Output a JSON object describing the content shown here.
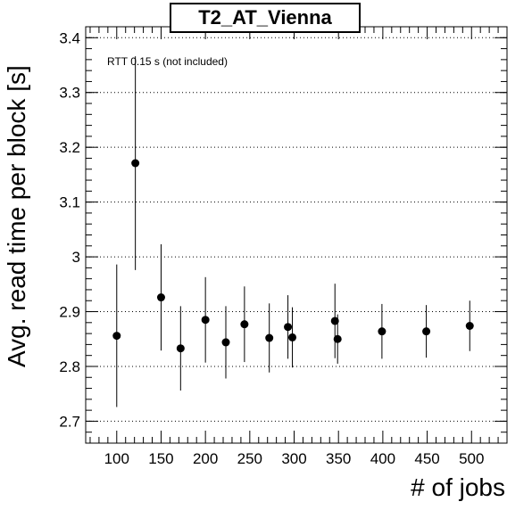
{
  "chart_data": {
    "type": "scatter",
    "title": "T2_AT_Vienna",
    "xlabel": "# of jobs",
    "ylabel": "Avg. read time per block [s]",
    "annotation": "RTT 0.15 s (not included)",
    "xlim": [
      65,
      540
    ],
    "ylim": [
      2.66,
      3.42
    ],
    "x_ticks": [
      100,
      150,
      200,
      250,
      300,
      350,
      400,
      450,
      500
    ],
    "y_ticks": [
      2.7,
      2.8,
      2.9,
      3.0,
      3.1,
      3.2,
      3.3,
      3.4
    ],
    "y_tick_labels": [
      "2.7",
      "2.8",
      "2.9",
      "3",
      "3.1",
      "3.2",
      "3.3",
      "3.4"
    ],
    "grid": "horizontal dotted",
    "series": [
      {
        "points": [
          {
            "x": 100,
            "y": 2.856,
            "err": 0.13
          },
          {
            "x": 121,
            "y": 3.171,
            "err": 0.195
          },
          {
            "x": 150,
            "y": 2.926,
            "err": 0.097
          },
          {
            "x": 172,
            "y": 2.833,
            "err": 0.077
          },
          {
            "x": 200,
            "y": 2.885,
            "err": 0.078
          },
          {
            "x": 223,
            "y": 2.844,
            "err": 0.066
          },
          {
            "x": 244,
            "y": 2.877,
            "err": 0.069
          },
          {
            "x": 272,
            "y": 2.852,
            "err": 0.063
          },
          {
            "x": 293,
            "y": 2.872,
            "err": 0.058
          },
          {
            "x": 298,
            "y": 2.853,
            "err": 0.055
          },
          {
            "x": 346,
            "y": 2.883,
            "err": 0.068
          },
          {
            "x": 349,
            "y": 2.85,
            "err": 0.045
          },
          {
            "x": 399,
            "y": 2.864,
            "err": 0.05
          },
          {
            "x": 449,
            "y": 2.864,
            "err": 0.048
          },
          {
            "x": 498,
            "y": 2.874,
            "err": 0.046
          }
        ]
      }
    ]
  }
}
